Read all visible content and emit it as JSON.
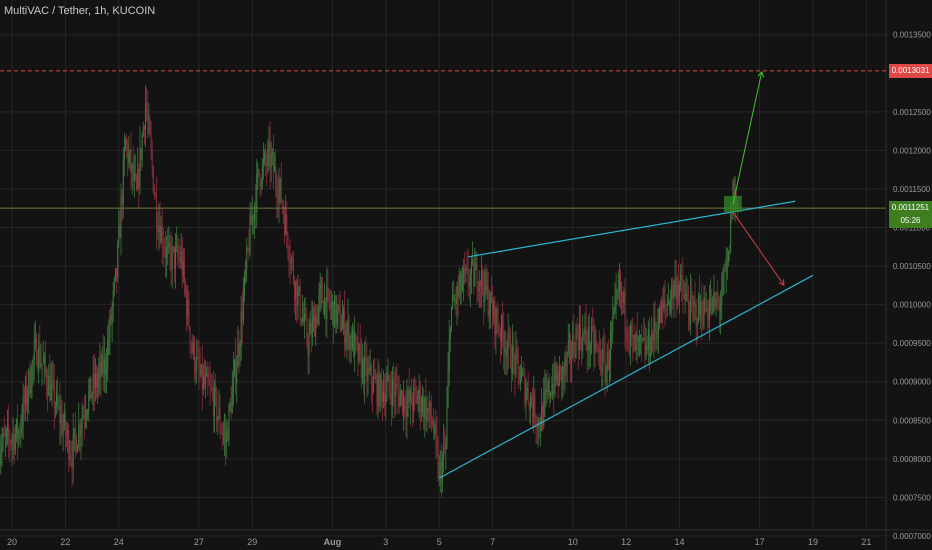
{
  "header": {
    "title": "MultiVAC / Tether, 1h, KUCOIN"
  },
  "colors": {
    "background": "#131313",
    "grid": "#262626",
    "up": "#3d7a3d",
    "down": "#8a2e3e",
    "channel": "#2bb4cf",
    "target_up": "#41c12f",
    "target_down": "#d23b48",
    "price_line": "#6f7a3a",
    "alert_line": "#e04848"
  },
  "price_tags": {
    "current": "0.0011251",
    "countdown": "05:26",
    "target": "0.0013031"
  },
  "chart_data": {
    "type": "candlestick",
    "title": "MultiVAC / Tether, 1h, KUCOIN",
    "xlabel": "",
    "ylabel": "",
    "ylim": [
      0.000685,
      0.001395
    ],
    "y_ticks": [
      "0.0007000",
      "0.0007500",
      "0.0008000",
      "0.0008500",
      "0.0009000",
      "0.0009500",
      "0.0010000",
      "0.0010500",
      "0.0011000",
      "0.0011500",
      "0.0012000",
      "0.0012500",
      "0.0013500"
    ],
    "x_tick_labels": [
      "20",
      "22",
      "24",
      "27",
      "29",
      "Aug",
      "3",
      "5",
      "7",
      "10",
      "12",
      "14",
      "17",
      "19",
      "21"
    ],
    "current_price": 0.0011251,
    "target_price": 0.0013031,
    "close_path": [
      {
        "x": "Jul 19 12:00",
        "y": 0.000815
      },
      {
        "x": "Jul 20 06:00",
        "y": 0.000835
      },
      {
        "x": "Jul 20 22:00",
        "y": 0.000945
      },
      {
        "x": "Jul 21 12:00",
        "y": 0.000885
      },
      {
        "x": "Jul 22 06:00",
        "y": 0.000808
      },
      {
        "x": "Jul 22 18:00",
        "y": 0.000872
      },
      {
        "x": "Jul 23 12:00",
        "y": 0.000922
      },
      {
        "x": "Jul 23 22:00",
        "y": 0.00104
      },
      {
        "x": "Jul 24 06:00",
        "y": 0.00121
      },
      {
        "x": "Jul 24 16:00",
        "y": 0.00114
      },
      {
        "x": "Jul 25 00:00",
        "y": 0.001262
      },
      {
        "x": "Jul 25 10:00",
        "y": 0.00112
      },
      {
        "x": "Jul 25 20:00",
        "y": 0.00106
      },
      {
        "x": "Jul 26 08:00",
        "y": 0.00106
      },
      {
        "x": "Jul 26 18:00",
        "y": 0.000942
      },
      {
        "x": "Jul 27 02:00",
        "y": 0.0009
      },
      {
        "x": "Jul 27 12:00",
        "y": 0.000882
      },
      {
        "x": "Jul 28 00:00",
        "y": 0.000822
      },
      {
        "x": "Jul 28 12:00",
        "y": 0.00095
      },
      {
        "x": "Jul 28 22:00",
        "y": 0.001095
      },
      {
        "x": "Jul 29 06:00",
        "y": 0.00117
      },
      {
        "x": "Jul 29 16:00",
        "y": 0.00119
      },
      {
        "x": "Jul 30 02:00",
        "y": 0.00114
      },
      {
        "x": "Jul 30 14:00",
        "y": 0.00103
      },
      {
        "x": "Jul 31 02:00",
        "y": 0.00095
      },
      {
        "x": "Jul 31 14:00",
        "y": 0.00101
      },
      {
        "x": "Aug 1 02:00",
        "y": 0.00099
      },
      {
        "x": "Aug 1 14:00",
        "y": 0.000965
      },
      {
        "x": "Aug 2 04:00",
        "y": 0.000915
      },
      {
        "x": "Aug 2 18:00",
        "y": 0.000888
      },
      {
        "x": "Aug 3 06:00",
        "y": 0.000892
      },
      {
        "x": "Aug 3 20:00",
        "y": 0.000872
      },
      {
        "x": "Aug 4 06:00",
        "y": 0.00088
      },
      {
        "x": "Aug 4 18:00",
        "y": 0.000848
      },
      {
        "x": "Aug 5 00:00",
        "y": 0.000775
      },
      {
        "x": "Aug 5 06:00",
        "y": 0.000815
      },
      {
        "x": "Aug 5 10:00",
        "y": 0.00099
      },
      {
        "x": "Aug 5 22:00",
        "y": 0.00103
      },
      {
        "x": "Aug 6 12:00",
        "y": 0.00104
      },
      {
        "x": "Aug 7 00:00",
        "y": 0.00099
      },
      {
        "x": "Aug 7 12:00",
        "y": 0.00095
      },
      {
        "x": "Aug 8 00:00",
        "y": 0.00091
      },
      {
        "x": "Aug 8 12:00",
        "y": 0.00087
      },
      {
        "x": "Aug 8 18:00",
        "y": 0.000845
      },
      {
        "x": "Aug 9 04:00",
        "y": 0.000895
      },
      {
        "x": "Aug 9 16:00",
        "y": 0.000912
      },
      {
        "x": "Aug 10 04:00",
        "y": 0.000962
      },
      {
        "x": "Aug 10 18:00",
        "y": 0.00095
      },
      {
        "x": "Aug 11 06:00",
        "y": 0.000915
      },
      {
        "x": "Aug 11 18:00",
        "y": 0.00102
      },
      {
        "x": "Aug 12 06:00",
        "y": 0.000945
      },
      {
        "x": "Aug 12 18:00",
        "y": 0.00094
      },
      {
        "x": "Aug 13 08:00",
        "y": 0.000988
      },
      {
        "x": "Aug 13 22:00",
        "y": 0.00103
      },
      {
        "x": "Aug 14 10:00",
        "y": 0.00099
      },
      {
        "x": "Aug 15 00:00",
        "y": 0.000995
      },
      {
        "x": "Aug 15 12:00",
        "y": 0.001
      },
      {
        "x": "Aug 15 20:00",
        "y": 0.001055
      },
      {
        "x": "Aug 16 00:00",
        "y": 0.00115
      },
      {
        "x": "Aug 16 04:00",
        "y": 0.001125
      }
    ],
    "annotations": {
      "upper_trendline": [
        {
          "x": "Aug 6 02:00",
          "y": 0.001062
        },
        {
          "x": "Aug 18 08:00",
          "y": 0.001134
        }
      ],
      "lower_trendline": [
        {
          "x": "Aug 5 00:00",
          "y": 0.000775
        },
        {
          "x": "Aug 19 00:00",
          "y": 0.001038
        }
      ],
      "breakout_box": [
        {
          "x": "Aug 15 16:00",
          "y": 0.001141
        },
        {
          "x": "Aug 16 08:00",
          "y": 0.00112
        }
      ],
      "arrow_up": [
        {
          "x": "Aug 16 00:00",
          "y": 0.00113
        },
        {
          "x": "Aug 17 02:00",
          "y": 0.001302
        }
      ],
      "arrow_down": [
        {
          "x": "Aug 16 00:00",
          "y": 0.00112
        },
        {
          "x": "Aug 17 22:00",
          "y": 0.001025
        }
      ]
    }
  }
}
